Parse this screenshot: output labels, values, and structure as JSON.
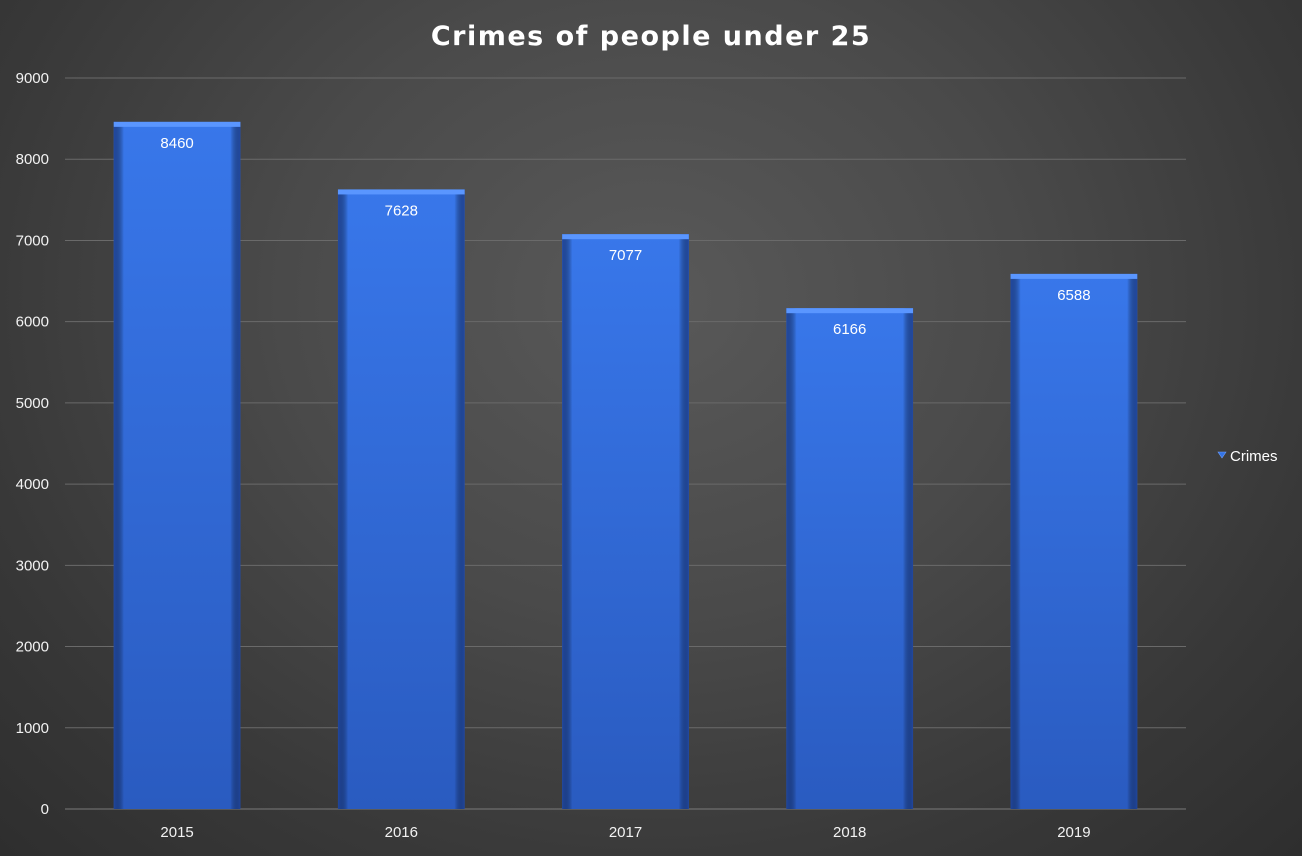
{
  "chart_data": {
    "type": "bar",
    "title": "Crimes of people under 25",
    "xlabel": "",
    "ylabel": "",
    "categories": [
      "2015",
      "2016",
      "2017",
      "2018",
      "2019"
    ],
    "series": [
      {
        "name": "Crimes",
        "values": [
          8460,
          7628,
          7077,
          6166,
          6588
        ],
        "color": "#3374e6"
      }
    ],
    "ylim": [
      0,
      9000
    ],
    "yticks": [
      0,
      1000,
      2000,
      3000,
      4000,
      5000,
      6000,
      7000,
      8000,
      9000
    ],
    "grid": true,
    "legend_position": "right",
    "data_labels": true
  }
}
